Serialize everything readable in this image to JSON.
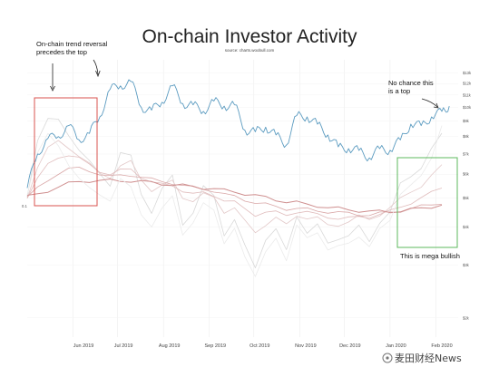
{
  "chart_data": {
    "type": "line",
    "title": "On-chain Investor Activity",
    "subtitle": "source: charts.woobull.com",
    "x_ticks": [
      "Jun 2019",
      "Jul 2019",
      "Aug 2019",
      "Sep 2019",
      "Oct 2019",
      "Nov 2019",
      "Dec 2019",
      "Jan 2020",
      "Feb 2020"
    ],
    "y_ticks_right": [
      "$13k",
      "$12k",
      "$11k",
      "$10k",
      "$9k",
      "$8k",
      "$7k",
      "$6k",
      "$5k",
      "$4k",
      "$3k",
      "$2k"
    ],
    "y_label_left": "0.1",
    "grid": true,
    "price_series": {
      "color": "#5b9bc0",
      "x": [
        "2019-05-01",
        "2019-05-08",
        "2019-05-15",
        "2019-05-22",
        "2019-05-29",
        "2019-06-05",
        "2019-06-12",
        "2019-06-19",
        "2019-06-26",
        "2019-07-03",
        "2019-07-10",
        "2019-07-17",
        "2019-07-24",
        "2019-07-31",
        "2019-08-07",
        "2019-08-14",
        "2019-08-21",
        "2019-08-28",
        "2019-09-04",
        "2019-09-11",
        "2019-09-18",
        "2019-09-25",
        "2019-10-02",
        "2019-10-09",
        "2019-10-16",
        "2019-10-23",
        "2019-10-30",
        "2019-11-06",
        "2019-11-13",
        "2019-11-20",
        "2019-11-27",
        "2019-12-04",
        "2019-12-11",
        "2019-12-18",
        "2019-12-25",
        "2020-01-01",
        "2020-01-08",
        "2020-01-15",
        "2020-01-22",
        "2020-01-29",
        "2020-02-05",
        "2020-02-10"
      ],
      "values": [
        5400,
        7000,
        7900,
        8000,
        8700,
        7800,
        8200,
        9300,
        11500,
        11800,
        12200,
        10000,
        9800,
        10400,
        11800,
        10300,
        10200,
        9700,
        10500,
        10100,
        10200,
        8400,
        8300,
        8600,
        8100,
        7500,
        9400,
        9300,
        8800,
        8100,
        7400,
        7300,
        7200,
        6800,
        7300,
        7200,
        7800,
        8800,
        8700,
        9300,
        9700,
        10100
      ]
    },
    "oscillator_series": [
      {
        "color": "#d9d9d9",
        "values": [
          0.1,
          0.68,
          0.88,
          0.86,
          0.72,
          0.58,
          0.45,
          0.32,
          0.22,
          0.55,
          0.5,
          0.12,
          -0.05,
          0.18,
          0.3,
          -0.18,
          -0.05,
          0.2,
          0.1,
          -0.28,
          -0.12,
          -0.4,
          -0.62,
          -0.32,
          -0.22,
          -0.45,
          -0.1,
          -0.25,
          -0.18,
          -0.38,
          -0.32,
          -0.28,
          -0.2,
          -0.36,
          -0.15,
          -0.05,
          0.22,
          0.3,
          0.4,
          0.58,
          0.72
        ]
      },
      {
        "color": "#e3c9c9",
        "values": [
          0.1,
          0.4,
          0.58,
          0.66,
          0.6,
          0.5,
          0.42,
          0.34,
          0.3,
          0.4,
          0.45,
          0.28,
          0.16,
          0.2,
          0.26,
          0.1,
          0.05,
          0.12,
          0.1,
          -0.05,
          -0.02,
          -0.15,
          -0.25,
          -0.18,
          -0.12,
          -0.18,
          -0.08,
          -0.12,
          -0.12,
          -0.18,
          -0.18,
          -0.16,
          -0.1,
          -0.12,
          -0.08,
          -0.02,
          0.08,
          0.16,
          0.2,
          0.3,
          0.42
        ]
      },
      {
        "color": "#e0bcbc",
        "values": [
          0.1,
          0.28,
          0.42,
          0.5,
          0.52,
          0.48,
          0.42,
          0.36,
          0.32,
          0.36,
          0.38,
          0.3,
          0.24,
          0.22,
          0.22,
          0.16,
          0.12,
          0.14,
          0.12,
          0.06,
          0.04,
          -0.02,
          -0.08,
          -0.06,
          -0.06,
          -0.08,
          -0.05,
          -0.06,
          -0.08,
          -0.1,
          -0.12,
          -0.12,
          -0.1,
          -0.1,
          -0.08,
          -0.05,
          0.0,
          0.04,
          0.08,
          0.14,
          0.2
        ]
      },
      {
        "color": "#d9a7a7",
        "values": [
          0.1,
          0.18,
          0.26,
          0.34,
          0.38,
          0.38,
          0.36,
          0.33,
          0.3,
          0.31,
          0.32,
          0.3,
          0.27,
          0.25,
          0.24,
          0.21,
          0.19,
          0.18,
          0.16,
          0.12,
          0.1,
          0.07,
          0.04,
          0.02,
          0.0,
          -0.02,
          -0.02,
          -0.03,
          -0.04,
          -0.05,
          -0.06,
          -0.07,
          -0.08,
          -0.08,
          -0.07,
          -0.06,
          -0.04,
          -0.02,
          0.0,
          0.02,
          0.04
        ]
      },
      {
        "color": "#cf8f8f",
        "values": [
          0.1,
          0.12,
          0.16,
          0.2,
          0.23,
          0.25,
          0.26,
          0.26,
          0.26,
          0.26,
          0.26,
          0.25,
          0.24,
          0.23,
          0.22,
          0.21,
          0.2,
          0.19,
          0.18,
          0.16,
          0.15,
          0.13,
          0.11,
          0.09,
          0.07,
          0.05,
          0.04,
          0.02,
          0.01,
          -0.01,
          -0.02,
          -0.03,
          -0.04,
          -0.05,
          -0.05,
          -0.05,
          -0.04,
          -0.03,
          -0.02,
          0.0,
          0.02
        ]
      },
      {
        "color": "#ebebeb",
        "values": [
          0.1,
          0.55,
          0.75,
          0.6,
          0.4,
          0.3,
          0.2,
          0.1,
          0.05,
          0.3,
          0.2,
          -0.1,
          -0.2,
          0.0,
          0.1,
          -0.3,
          -0.15,
          0.05,
          -0.05,
          -0.38,
          -0.2,
          -0.5,
          -0.72,
          -0.45,
          -0.3,
          -0.55,
          -0.2,
          -0.3,
          -0.25,
          -0.45,
          -0.4,
          -0.35,
          -0.3,
          -0.42,
          -0.22,
          -0.12,
          0.12,
          0.2,
          0.32,
          0.5,
          0.8
        ]
      }
    ],
    "x_points": [
      "2019-05-01",
      "2019-05-08",
      "2019-05-15",
      "2019-05-22",
      "2019-05-29",
      "2019-06-05",
      "2019-06-12",
      "2019-06-19",
      "2019-06-26",
      "2019-07-03",
      "2019-07-10",
      "2019-07-17",
      "2019-07-24",
      "2019-07-31",
      "2019-08-07",
      "2019-08-14",
      "2019-08-21",
      "2019-08-28",
      "2019-09-04",
      "2019-09-11",
      "2019-09-18",
      "2019-09-25",
      "2019-10-02",
      "2019-10-09",
      "2019-10-16",
      "2019-10-23",
      "2019-10-30",
      "2019-11-06",
      "2019-11-13",
      "2019-11-20",
      "2019-11-27",
      "2019-12-04",
      "2019-12-11",
      "2019-12-18",
      "2019-12-25",
      "2020-01-01",
      "2020-01-08",
      "2020-01-15",
      "2020-01-22",
      "2020-01-29",
      "2020-02-05"
    ],
    "annotations": [
      {
        "id": "reversal",
        "lines": [
          "On-chain trend reversal",
          "precedes the top"
        ]
      },
      {
        "id": "no-top",
        "lines": [
          "No chance this",
          "is a top"
        ]
      },
      {
        "id": "bullish",
        "lines": [
          "This is mega bullish"
        ]
      }
    ],
    "highlights": [
      {
        "id": "red-box",
        "color": "#d9534f"
      },
      {
        "id": "green-box",
        "color": "#5cb85c"
      }
    ]
  },
  "watermark": {
    "text": "麦田财经News"
  }
}
